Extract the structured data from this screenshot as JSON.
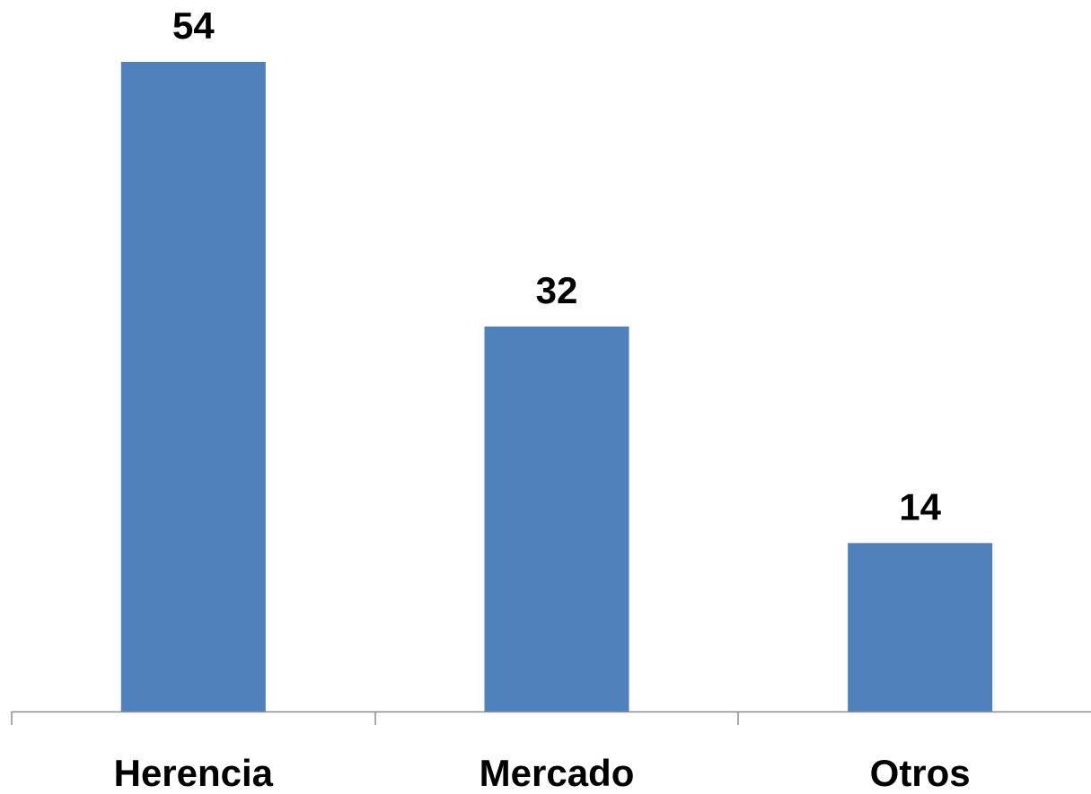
{
  "chart_data": {
    "type": "bar",
    "categories": [
      "Herencia",
      "Mercado",
      "Otros"
    ],
    "values": [
      54,
      32,
      14
    ],
    "data_labels": [
      "54",
      "32",
      "14"
    ],
    "title": "",
    "xlabel": "",
    "ylabel": "",
    "ylim": [
      0,
      54
    ],
    "grid": false,
    "legend": "none",
    "colors": {
      "bar": "#4f81bd",
      "axis": "#8c8c8c",
      "text": "#000000"
    }
  }
}
